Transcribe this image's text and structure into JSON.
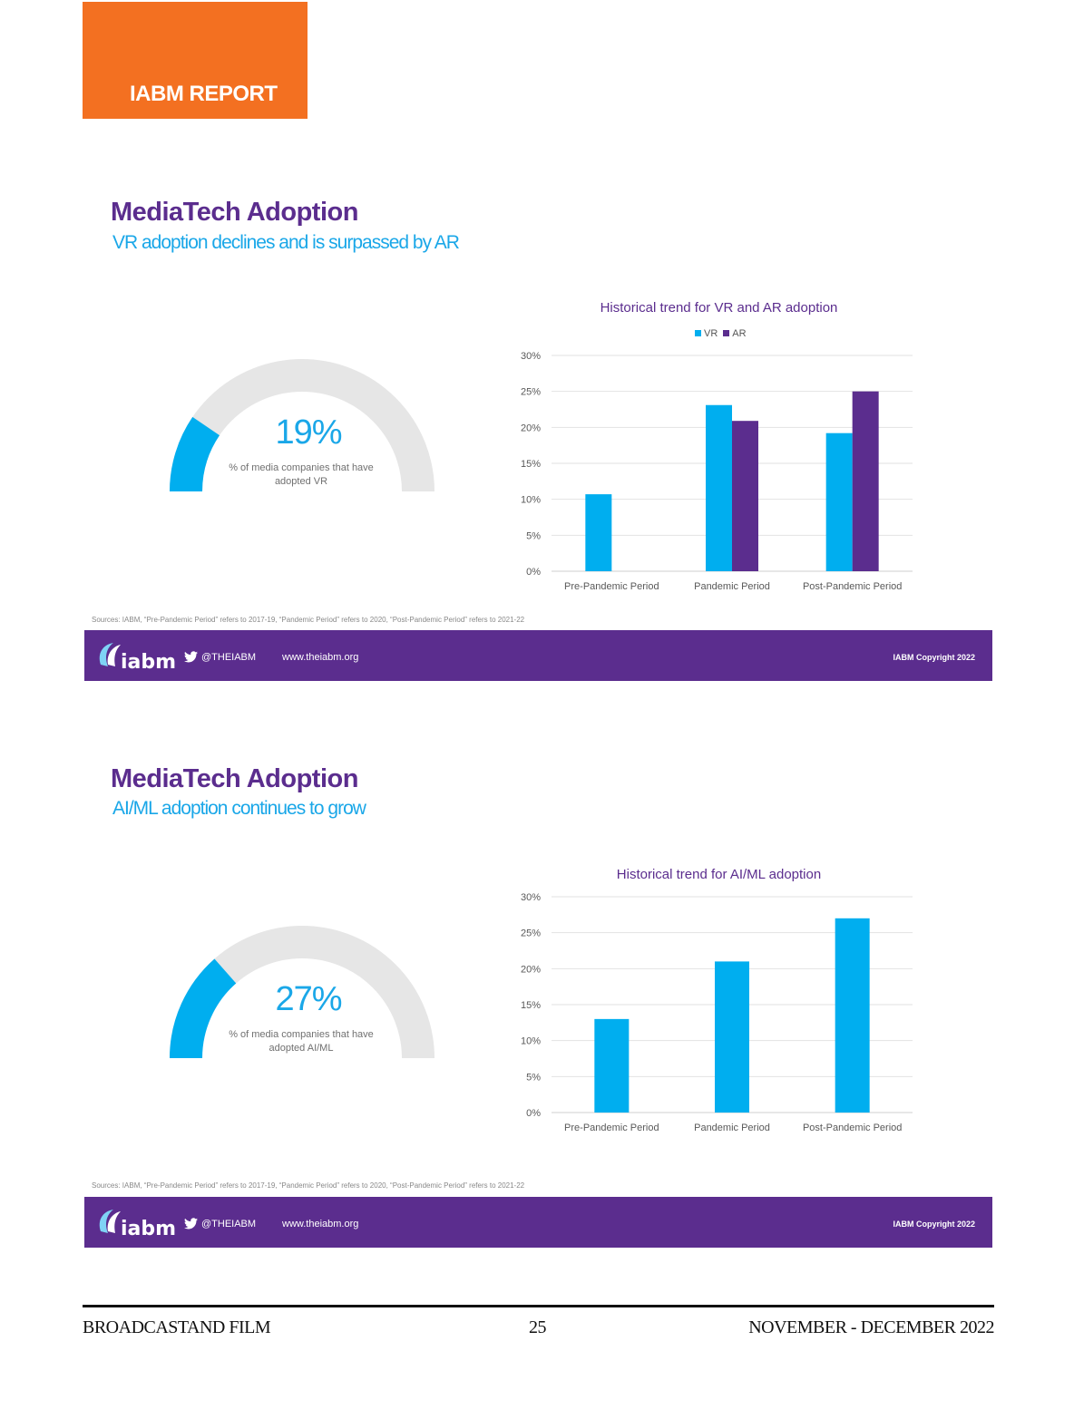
{
  "header": {
    "tag_label": "IABM REPORT"
  },
  "sections": [
    {
      "title": "MediaTech Adoption",
      "subtitle": "VR adoption declines and is surpassed by AR",
      "gauge": {
        "value_label": "19%",
        "fraction": 0.19,
        "caption": "% of media companies that have adopted VR"
      },
      "sources": "Sources: IABM, “Pre-Pandemic Period” refers to 2017-19, “Pandemic Period” refers to 2020, “Post-Pandemic Period” refers to 2021-22"
    },
    {
      "title": "MediaTech Adoption",
      "subtitle": "AI/ML adoption continues to grow",
      "gauge": {
        "value_label": "27%",
        "fraction": 0.27,
        "caption": "% of media companies that have adopted AI/ML"
      },
      "sources": "Sources: IABM, “Pre-Pandemic Period” refers to 2017-19, “Pandemic Period” refers to 2020, “Post-Pandemic Period” refers to 2021-22"
    }
  ],
  "chart_data": [
    {
      "type": "bar",
      "title": "Historical trend for VR and AR adoption",
      "categories": [
        "Pre-Pandemic Period",
        "Pandemic Period",
        "Post-Pandemic Period"
      ],
      "series": [
        {
          "name": "VR",
          "values": [
            10.7,
            23.1,
            19.2
          ],
          "color": "#00aeef"
        },
        {
          "name": "AR",
          "values": [
            null,
            20.9,
            25.0
          ],
          "color": "#5b2d8e"
        }
      ],
      "yticks": [
        "0%",
        "5%",
        "10%",
        "15%",
        "20%",
        "25%",
        "30%"
      ],
      "ylim": [
        0,
        30
      ],
      "grid": true,
      "legend": "top-center"
    },
    {
      "type": "bar",
      "title": "Historical trend for AI/ML adoption",
      "categories": [
        "Pre-Pandemic Period",
        "Pandemic Period",
        "Post-Pandemic Period"
      ],
      "series": [
        {
          "values": [
            13.0,
            21.0,
            27.0
          ],
          "color": "#00aeef"
        }
      ],
      "yticks": [
        "0%",
        "5%",
        "10%",
        "15%",
        "20%",
        "25%",
        "30%"
      ],
      "ylim": [
        0,
        30
      ],
      "grid": true,
      "legend": "none"
    }
  ],
  "footer_bar": {
    "logo_text": "iabm",
    "twitter": "@THEIABM",
    "url": "www.theiabm.org",
    "copyright": "IABM Copyright 2022"
  },
  "page_footer": {
    "left": "BROADCASTAND FILM",
    "center": "25",
    "right": "NOVEMBER - DECEMBER 2022"
  },
  "colors": {
    "orange": "#f37021",
    "purple": "#5b2d8e",
    "blue": "#00aeef",
    "gauge_track": "#e6e6e6"
  }
}
